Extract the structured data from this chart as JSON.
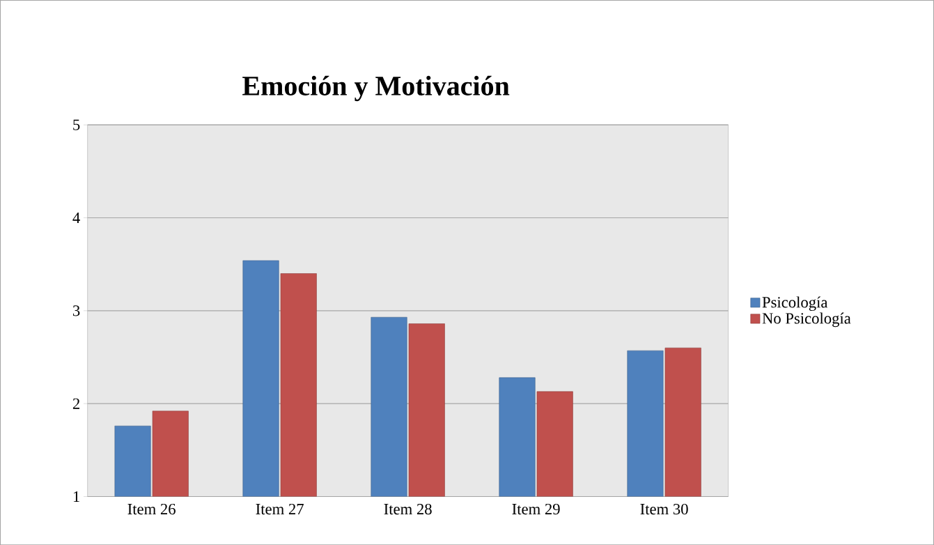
{
  "chart_data": {
    "type": "bar",
    "title": "Emoción y Motivación",
    "categories": [
      "Item 26",
      "Item 27",
      "Item 28",
      "Item 29",
      "Item 30"
    ],
    "series": [
      {
        "name": "Psicología",
        "color": "#4f81bd",
        "values": [
          1.76,
          3.54,
          2.93,
          2.28,
          2.57
        ]
      },
      {
        "name": "No Psicología",
        "color": "#c0504d",
        "values": [
          1.92,
          3.4,
          2.86,
          2.13,
          2.6
        ]
      }
    ],
    "ylim": [
      1,
      5
    ],
    "yticks": [
      1,
      2,
      3,
      4,
      5
    ],
    "grid": "y",
    "legend": "right"
  }
}
